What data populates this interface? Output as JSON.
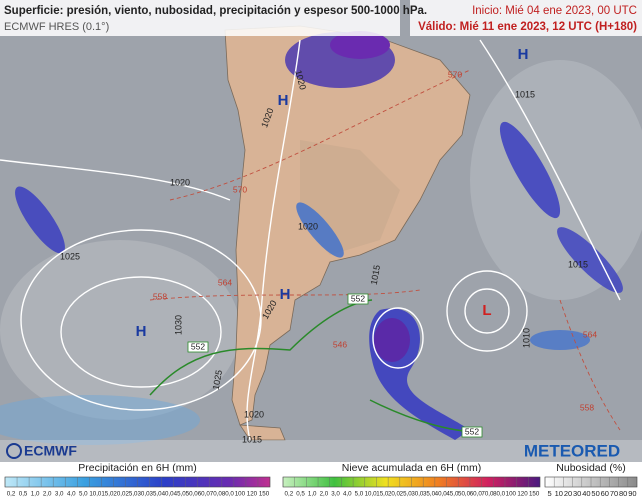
{
  "header": {
    "title": "Superficie: presión, viento, nubosidad, precipitación y espesor 500-1000 hPa.",
    "model": "ECMWF HRES (0.1°)",
    "init": "Inicio: Mié 04 ene 2023, 00 UTC",
    "valid": "Válido: Mié 11 ene 2023, 12 UTC (H+180)"
  },
  "centers": [
    "H",
    "H",
    "H",
    "H",
    "L"
  ],
  "isobar_labels": [
    "1020",
    "1020",
    "1020",
    "1025",
    "1020",
    "1015",
    "1015",
    "1015",
    "1010",
    "1030",
    "1020",
    "1025",
    "1020",
    "1015"
  ],
  "thickness_labels": [
    "570",
    "570",
    "564",
    "558",
    "552",
    "552",
    "552",
    "546",
    "558",
    "564"
  ],
  "logos": [
    "ECMWF",
    "METEORED"
  ],
  "legends": [
    {
      "title": "Precipitación en 6H (mm)",
      "ticks": [
        "0,2",
        "0,5",
        "1,0",
        "2,0",
        "3,0",
        "4,0",
        "5,0",
        "10,0",
        "15,0",
        "20,0",
        "25,0",
        "30,0",
        "35,0",
        "40,0",
        "45,0",
        "50,0",
        "60,0",
        "70,0",
        "80,0",
        "100",
        "120",
        "150"
      ]
    },
    {
      "title": "Nieve acumulada en 6H (mm)",
      "ticks": [
        "0,2",
        "0,5",
        "1,0",
        "2,0",
        "3,0",
        "4,0",
        "5,0",
        "10,0",
        "15,0",
        "20,0",
        "25,0",
        "30,0",
        "35,0",
        "40,0",
        "45,0",
        "50,0",
        "60,0",
        "70,0",
        "80,0",
        "100",
        "120",
        "150"
      ]
    },
    {
      "title": "Nubosidad (%)",
      "ticks": [
        "5",
        "10",
        "20",
        "30",
        "40",
        "50",
        "60",
        "70",
        "80",
        "90"
      ]
    }
  ]
}
